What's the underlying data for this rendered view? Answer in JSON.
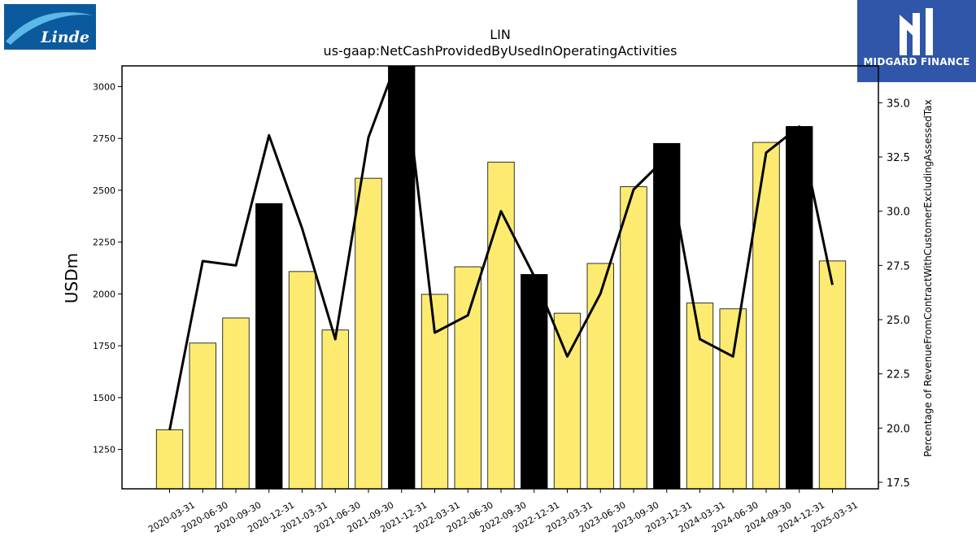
{
  "logos": {
    "left_text": "Linde",
    "right_text": "MIDGARD FINANCE"
  },
  "chart_data": {
    "type": "bar",
    "title": "LIN",
    "subtitle": "us-gaap:NetCashProvidedByUsedInOperatingActivities",
    "ylabel": "USDm",
    "y2label": "Percentage of RevenueFromContractWithCustomerExcludingAssessedTax",
    "ylim": [
      1060,
      3100
    ],
    "y2lim": [
      17.2,
      36.7
    ],
    "yticks": [
      1250,
      1500,
      1750,
      2000,
      2250,
      2500,
      2750,
      3000
    ],
    "y2ticks": [
      17.5,
      20.0,
      22.5,
      25.0,
      27.5,
      30.0,
      32.5,
      35.0
    ],
    "categories": [
      "2020-03-31",
      "2020-06-30",
      "2020-09-30",
      "2020-12-31",
      "2021-03-31",
      "2021-06-30",
      "2021-09-30",
      "2021-12-31",
      "2022-03-31",
      "2022-06-30",
      "2022-09-30",
      "2022-12-31",
      "2023-03-31",
      "2023-06-30",
      "2023-09-30",
      "2023-12-31",
      "2024-03-31",
      "2024-06-30",
      "2024-09-30",
      "2024-12-31",
      "2025-03-31"
    ],
    "series": [
      {
        "type": "bar",
        "values": [
          1345,
          1763,
          1884,
          2436,
          2108,
          1826,
          2558,
          3100,
          1998,
          2131,
          2636,
          2094,
          1907,
          2147,
          2517,
          2726,
          1956,
          1928,
          2731,
          2808,
          2159
        ],
        "colors": [
          "#fdeb71",
          "#fdeb71",
          "#fdeb71",
          "#000000",
          "#fdeb71",
          "#fdeb71",
          "#fdeb71",
          "#000000",
          "#fdeb71",
          "#fdeb71",
          "#fdeb71",
          "#000000",
          "#fdeb71",
          "#fdeb71",
          "#fdeb71",
          "#000000",
          "#fdeb71",
          "#fdeb71",
          "#fdeb71",
          "#000000",
          "#fdeb71"
        ]
      },
      {
        "type": "line",
        "axis": "right",
        "color": "#000000",
        "values": [
          19.9,
          27.7,
          27.5,
          33.5,
          29.2,
          24.1,
          33.4,
          37.5,
          24.4,
          25.2,
          30.0,
          27.0,
          23.3,
          26.2,
          31.0,
          32.5,
          24.1,
          23.3,
          32.7,
          33.9,
          26.6
        ]
      }
    ],
    "grid": false,
    "legend": "none",
    "colors": {
      "bar_normal": "#fdeb71",
      "bar_q4": "#000000",
      "line": "#000000"
    }
  }
}
